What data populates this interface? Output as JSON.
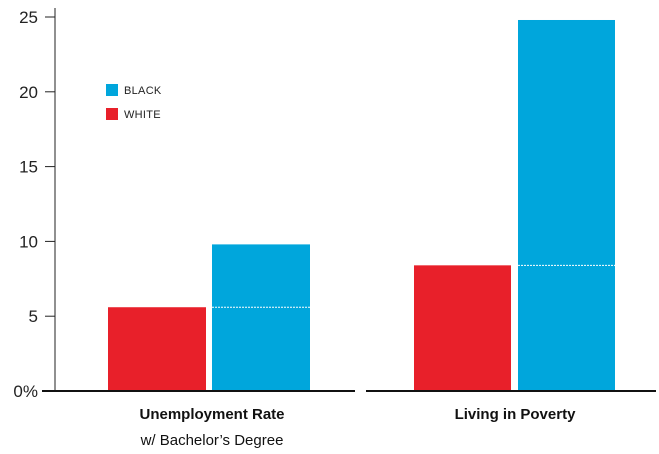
{
  "chart_data": {
    "type": "bar",
    "categories": [
      {
        "title": "Unemployment Rate",
        "subtitle": "w/ Bachelor’s Degree"
      },
      {
        "title": "Living in Poverty",
        "subtitle": ""
      }
    ],
    "series": [
      {
        "name": "WHITE",
        "color": "#e8202a",
        "values": [
          5.6,
          8.4
        ]
      },
      {
        "name": "BLACK",
        "color": "#00a6dc",
        "values": [
          9.8,
          24.8
        ]
      }
    ],
    "y_ticks": [
      {
        "value": 0,
        "label": "0%"
      },
      {
        "value": 5,
        "label": "5"
      },
      {
        "value": 10,
        "label": "10"
      },
      {
        "value": 15,
        "label": "15"
      },
      {
        "value": 20,
        "label": "20"
      },
      {
        "value": 25,
        "label": "25"
      }
    ],
    "legend": {
      "placement": "top-left",
      "entries": [
        {
          "label": "BLACK",
          "color": "#00a6dc"
        },
        {
          "label": "WHITE",
          "color": "#e8202a"
        }
      ]
    },
    "reference_line": "dashed white line on the BLACK bar at the WHITE value",
    "ylim": [
      0,
      26.5
    ],
    "grid": false
  }
}
